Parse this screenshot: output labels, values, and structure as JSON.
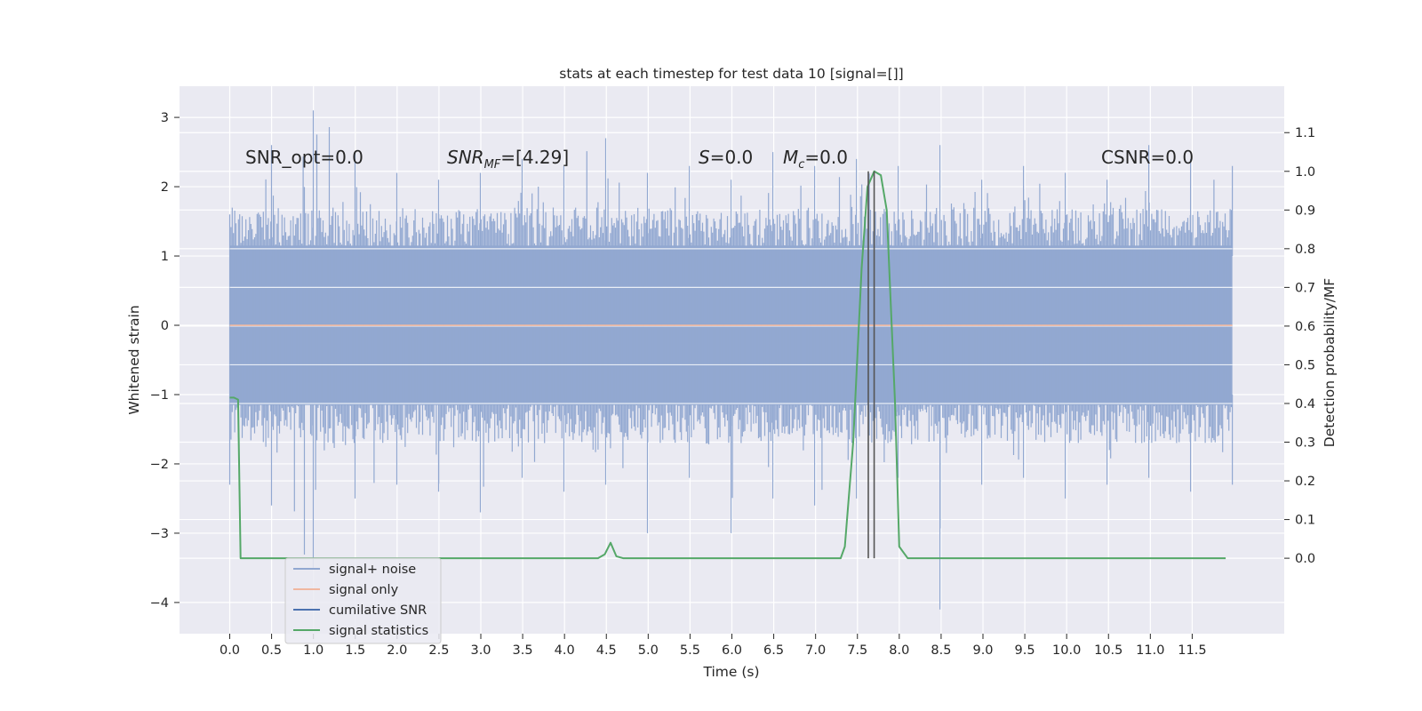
{
  "chart_data": {
    "type": "line",
    "title": "stats at each timestep for test data 10 [signal=[]]",
    "xlabel": "Time (s)",
    "ylabel_left": "Whitened strain",
    "ylabel_right": "Detection probability/MF",
    "xlim": [
      -0.6,
      12.6
    ],
    "ylim_left": [
      -4.45,
      3.45
    ],
    "ylim_right": [
      -0.195,
      1.22
    ],
    "x_ticks": [
      "0.0",
      "0.5",
      "1.0",
      "1.5",
      "2.0",
      "2.5",
      "3.0",
      "3.5",
      "4.0",
      "4.5",
      "5.0",
      "5.5",
      "6.0",
      "6.5",
      "7.0",
      "7.5",
      "8.0",
      "8.5",
      "9.0",
      "9.5",
      "10.0",
      "10.5",
      "11.0",
      "11.5"
    ],
    "y_ticks_left": [
      "3",
      "2",
      "1",
      "0",
      "−1",
      "−2",
      "−3",
      "−4"
    ],
    "y_ticks_right": [
      "1.1",
      "1.0",
      "0.9",
      "0.8",
      "0.7",
      "0.6",
      "0.5",
      "0.4",
      "0.3",
      "0.2",
      "0.1",
      "0.0"
    ],
    "grid": true,
    "legend_placement": "lower-left",
    "annotations": {
      "snr_opt": "SNR_opt=0.0",
      "snr_mf_prefix": "SNR",
      "snr_mf_sub": "MF",
      "snr_mf_value": "=[4.29]",
      "s_sym": "S",
      "s_value": "=0.0",
      "mc_sym": "M",
      "mc_sub": "c",
      "mc_value": "=0.0",
      "csnr": "CSNR=0.0"
    },
    "vlines_x": [
      7.63,
      7.7
    ],
    "series": [
      {
        "name": "signal+ noise",
        "color": "#92a8d1",
        "axis": "left",
        "x_range": [
          0.0,
          11.98
        ],
        "envelope_upper": [
          1.6,
          2.6,
          3.1,
          2.5,
          2.2,
          2.1,
          2.2,
          2.4,
          2.3,
          2.7,
          2.2,
          2.3,
          2.1,
          2.5,
          2.3,
          2.4,
          2.3,
          2.6,
          2.1,
          2.3,
          2.2,
          2.1,
          2.6,
          2.4,
          2.3
        ],
        "envelope_lower": [
          -2.3,
          -2.6,
          -3.5,
          -2.5,
          -2.3,
          -2.4,
          -2.7,
          -2.2,
          -2.4,
          -2.3,
          -3.0,
          -2.2,
          -3.0,
          -2.5,
          -2.6,
          -2.5,
          -2.2,
          -4.1,
          -2.3,
          -2.2,
          -2.5,
          -2.3,
          -2.2,
          -2.4,
          -2.3
        ]
      },
      {
        "name": "signal only",
        "color": "#f0b7a0",
        "axis": "left",
        "x": [
          0.0,
          11.98
        ],
        "values": [
          0.0,
          0.0
        ]
      },
      {
        "name": "cumilative SNR",
        "color": "#4c72b0",
        "axis": "right",
        "x": [],
        "values": []
      },
      {
        "name": "signal statistics",
        "color": "#55a868",
        "axis": "right",
        "x": [
          0.0,
          0.05,
          0.1,
          0.13,
          0.5,
          1.0,
          2.0,
          3.0,
          4.0,
          4.4,
          4.48,
          4.55,
          4.62,
          4.7,
          5.0,
          6.0,
          6.5,
          7.0,
          7.3,
          7.35,
          7.45,
          7.55,
          7.62,
          7.7,
          7.78,
          7.85,
          7.95,
          8.0,
          8.1,
          8.5,
          9.0,
          9.8,
          10.0,
          11.0,
          11.9
        ],
        "values": [
          0.415,
          0.415,
          0.41,
          0.0,
          0.0,
          0.0,
          0.0,
          0.0,
          0.0,
          0.0,
          0.01,
          0.04,
          0.005,
          0.0,
          0.0,
          0.0,
          0.0,
          0.0,
          0.0,
          0.03,
          0.3,
          0.75,
          0.96,
          1.0,
          0.99,
          0.9,
          0.4,
          0.03,
          0.0,
          0.0,
          0.0,
          0.0,
          0.0,
          0.0,
          0.0
        ]
      }
    ]
  }
}
